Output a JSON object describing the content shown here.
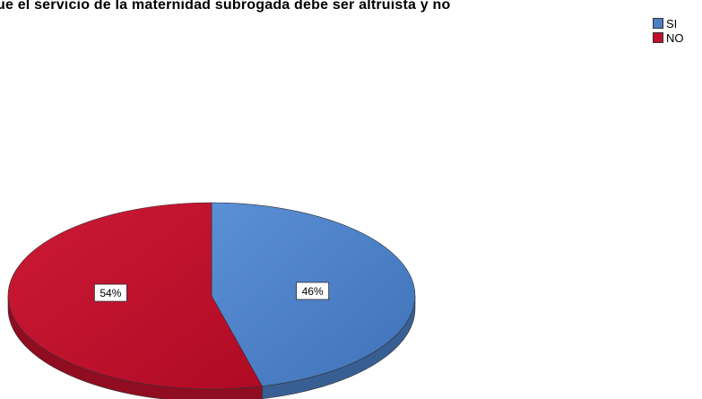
{
  "chart_data": {
    "type": "pie",
    "title": "que el servicio de la maternidad subrogada debe ser altruista y no",
    "categories": [
      "SI",
      "NO"
    ],
    "values": [
      46,
      54
    ],
    "data_labels": [
      "46%",
      "54%"
    ],
    "legend_position": "top-right",
    "colors": [
      "#4a7fc4",
      "#c0102c"
    ]
  }
}
